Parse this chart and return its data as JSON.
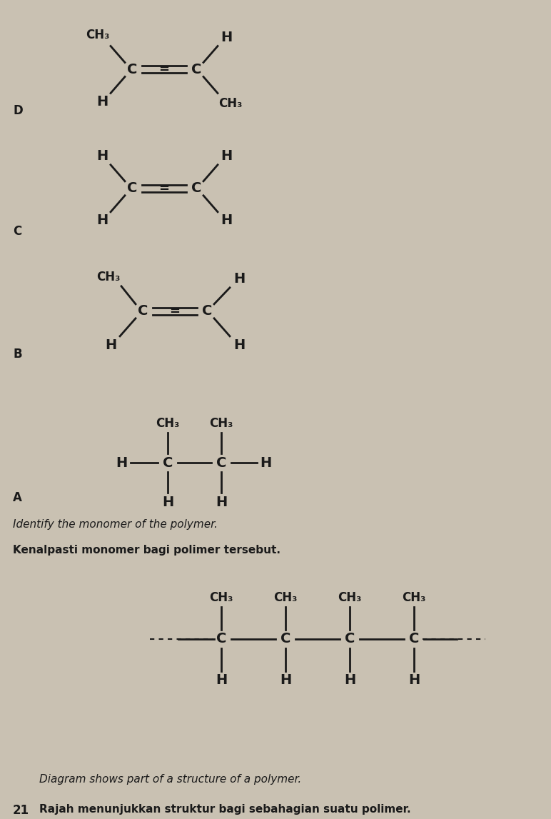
{
  "bg_color": "#c9c1b2",
  "text_color": "#1a1a1a",
  "question_num": "21",
  "line1_malay": "Rajah menunjukkan struktur bagi sebahagian suatu polimer.",
  "line1_english": "Diagram shows part of a structure of a polymer.",
  "line2_malay": "Kenalpasti monomer bagi polimer tersebut.",
  "line2_english": "Identify the monomer of the polymer."
}
